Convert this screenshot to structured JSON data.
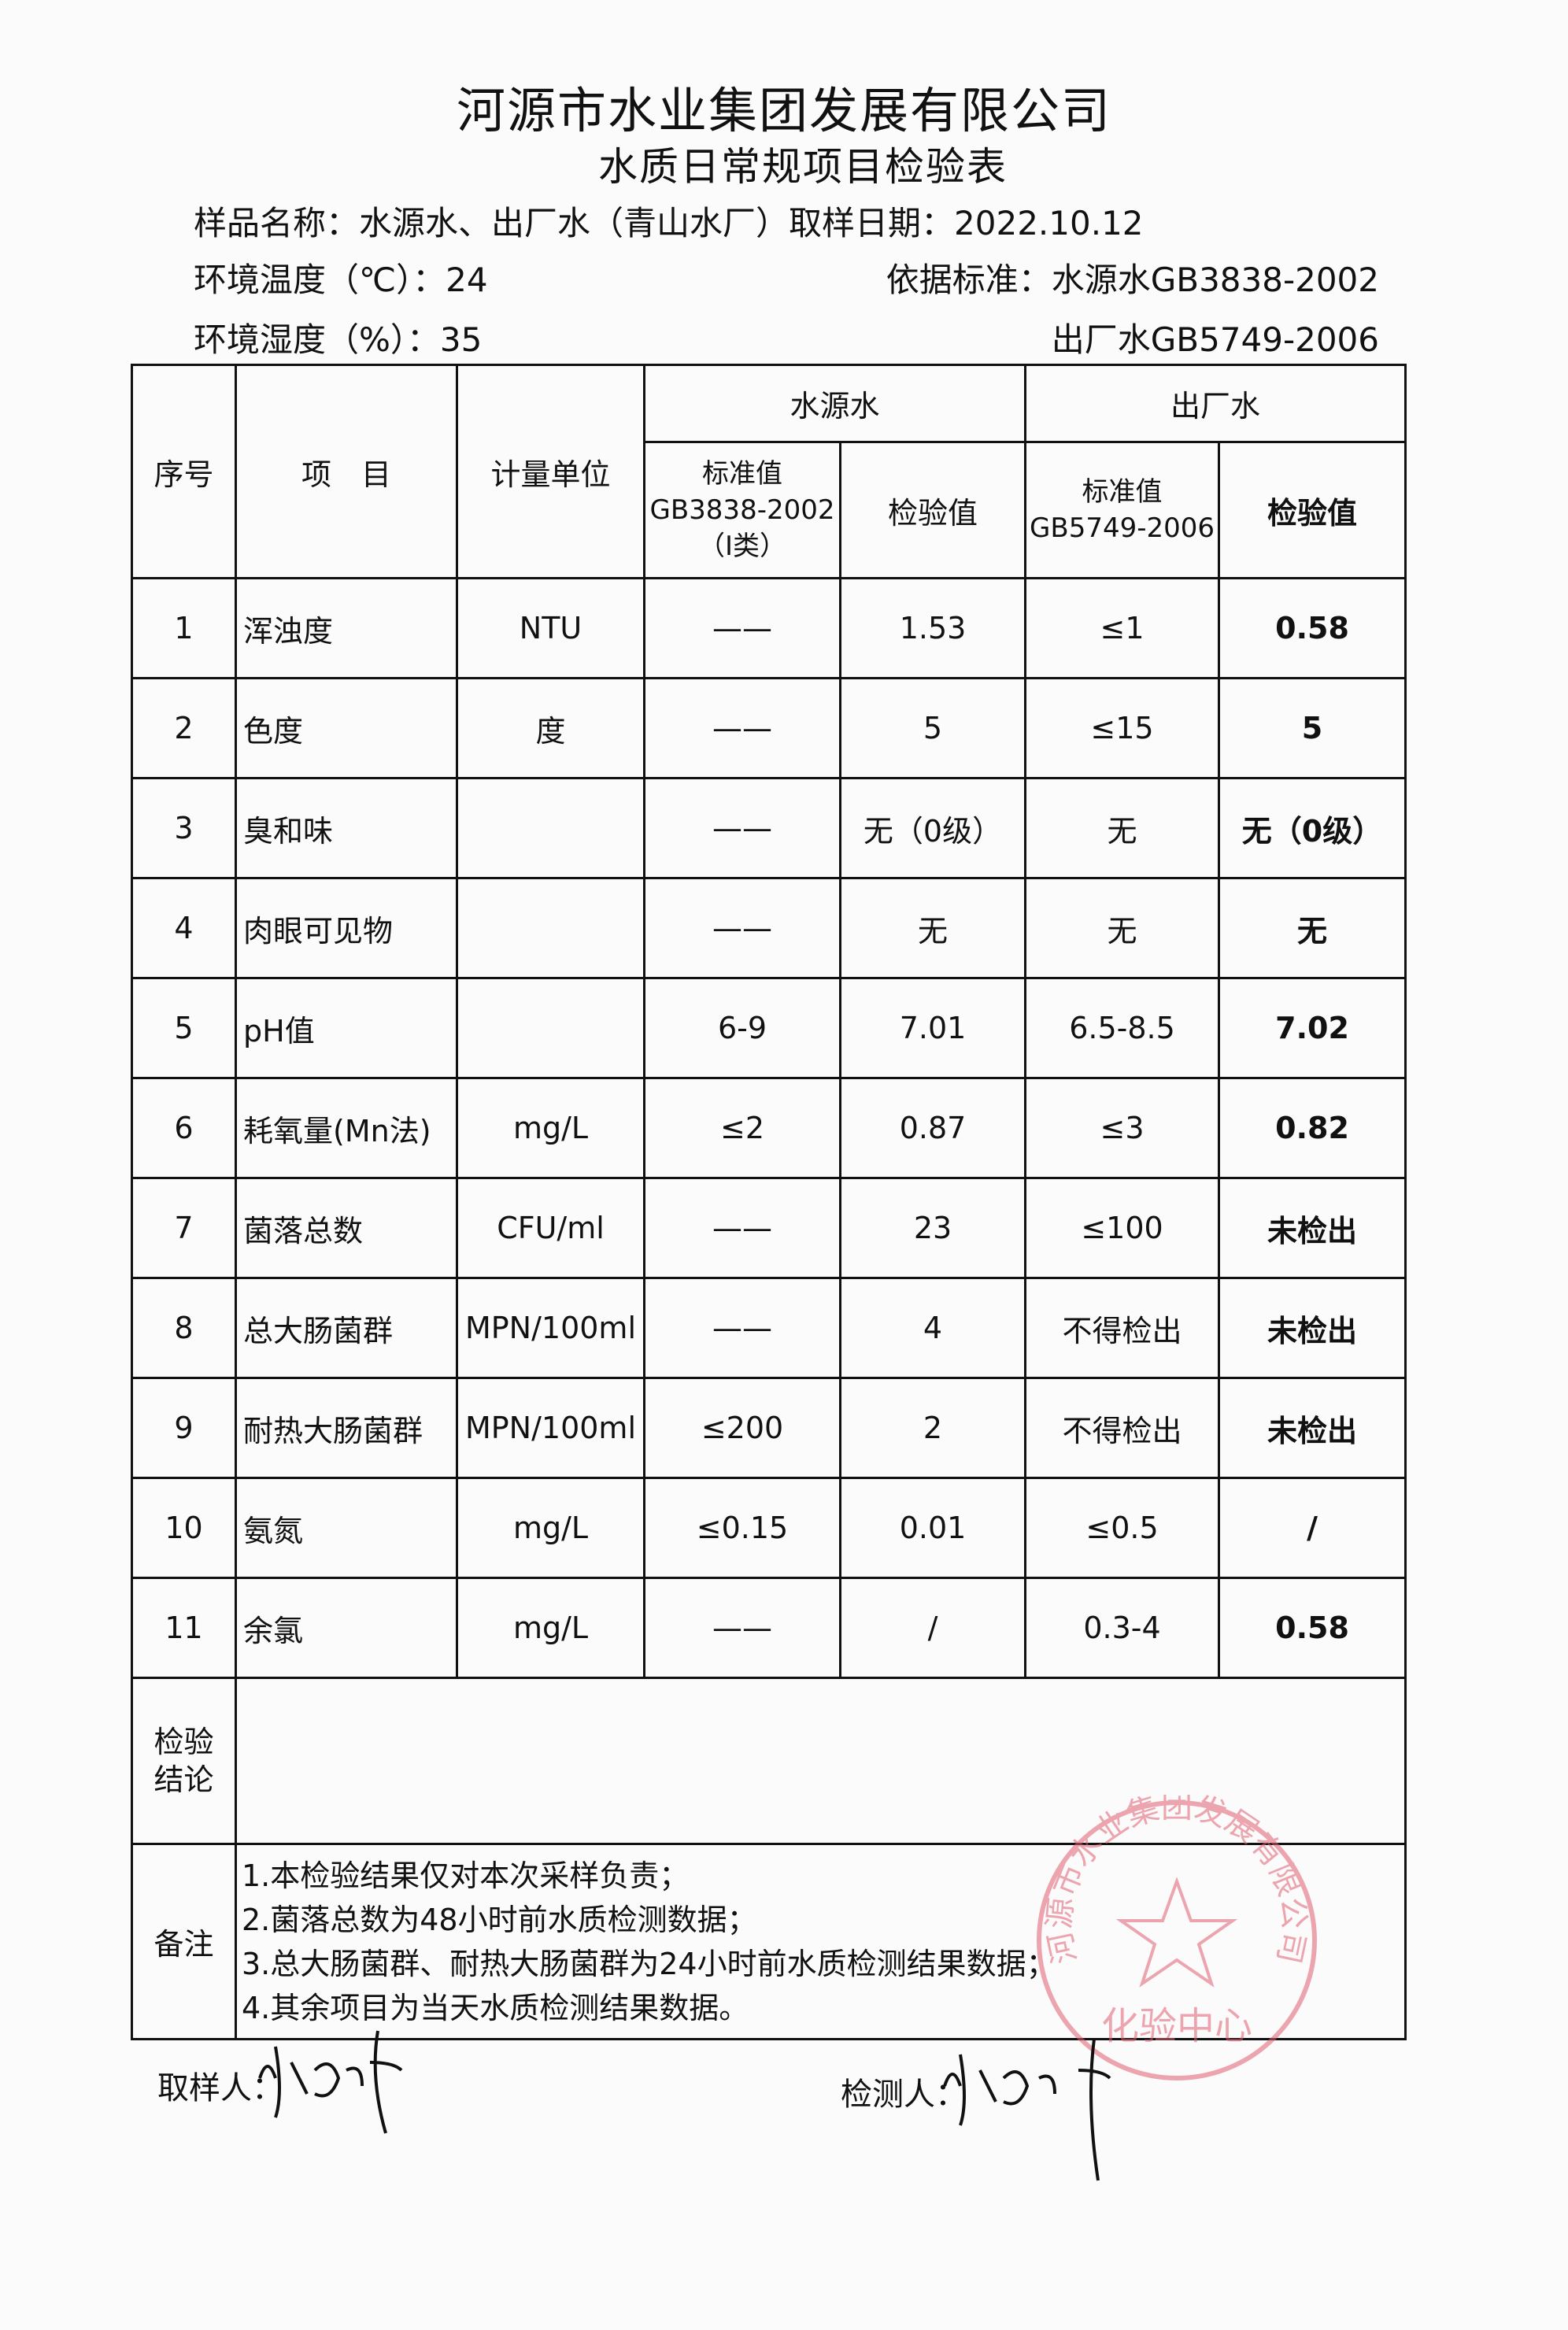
{
  "header": {
    "company": "河源市水业集团发展有限公司",
    "form_title": "水质日常规项目检验表",
    "sample_name_label": "样品名称：",
    "sample_name": "水源水、出厂水（青山水厂）",
    "sampling_date_label": "取样日期：",
    "sampling_date": "2022.10.12",
    "temperature_label": "环境温度（℃）：",
    "temperature": "24",
    "humidity_label": "环境湿度（%）：",
    "humidity": "35",
    "standard_label": "依据标准：",
    "standard_source": "水源水GB3838-2002",
    "standard_outlet": "出厂水GB5749-2006"
  },
  "table": {
    "headers": {
      "index": "序号",
      "item": "项　目",
      "unit": "计量单位",
      "source_water": "水源水",
      "outlet_water": "出厂水",
      "source_std": [
        "标准值",
        "GB3838-2002",
        "（Ⅰ类）"
      ],
      "source_value": "检验值",
      "outlet_std": [
        "标准值",
        "GB5749-2006"
      ],
      "outlet_value": "检验值"
    },
    "rows": [
      {
        "no": "1",
        "item": "浑浊度",
        "unit": "NTU",
        "src_std": "——",
        "src_val": "1.53",
        "out_std": "≤1",
        "out_val": "0.58"
      },
      {
        "no": "2",
        "item": "色度",
        "unit": "度",
        "src_std": "——",
        "src_val": "5",
        "out_std": "≤15",
        "out_val": "5"
      },
      {
        "no": "3",
        "item": "臭和味",
        "unit": "",
        "src_std": "——",
        "src_val": "无（0级）",
        "out_std": "无",
        "out_val": "无（0级）"
      },
      {
        "no": "4",
        "item": "肉眼可见物",
        "unit": "",
        "src_std": "——",
        "src_val": "无",
        "out_std": "无",
        "out_val": "无"
      },
      {
        "no": "5",
        "item": "pH值",
        "unit": "",
        "src_std": "6-9",
        "src_val": "7.01",
        "out_std": "6.5-8.5",
        "out_val": "7.02"
      },
      {
        "no": "6",
        "item": "耗氧量(Mn法)",
        "unit": "mg/L",
        "src_std": "≤2",
        "src_val": "0.87",
        "out_std": "≤3",
        "out_val": "0.82"
      },
      {
        "no": "7",
        "item": "菌落总数",
        "unit": "CFU/ml",
        "src_std": "——",
        "src_val": "23",
        "out_std": "≤100",
        "out_val": "未检出"
      },
      {
        "no": "8",
        "item": "总大肠菌群",
        "unit": "MPN/100ml",
        "src_std": "——",
        "src_val": "4",
        "out_std": "不得检出",
        "out_val": "未检出"
      },
      {
        "no": "9",
        "item": "耐热大肠菌群",
        "unit": "MPN/100ml",
        "src_std": "≤200",
        "src_val": "2",
        "out_std": "不得检出",
        "out_val": "未检出"
      },
      {
        "no": "10",
        "item": "氨氮",
        "unit": "mg/L",
        "src_std": "≤0.15",
        "src_val": "0.01",
        "out_std": "≤0.5",
        "out_val": "/"
      },
      {
        "no": "11",
        "item": "余氯",
        "unit": "mg/L",
        "src_std": "——",
        "src_val": "/",
        "out_std": "0.3-4",
        "out_val": "0.58"
      }
    ],
    "conclusion_label": "检验结论",
    "conclusion": "",
    "remarks_label": "备注",
    "remarks": [
      "1.本检验结果仅对本次采样负责；",
      "2.菌落总数为48小时前水质检测数据；",
      "3.总大肠菌群、耐热大肠菌群为24小时前水质检测结果数据；",
      "4.其余项目为当天水质检测结果数据。"
    ]
  },
  "footer": {
    "sampler_label": "取样人：",
    "tester_label": "检测人："
  },
  "stamp": {
    "outer_text": "河源市水业集团发展有限公司",
    "inner_text": "化验中心",
    "color": "#e06070"
  }
}
